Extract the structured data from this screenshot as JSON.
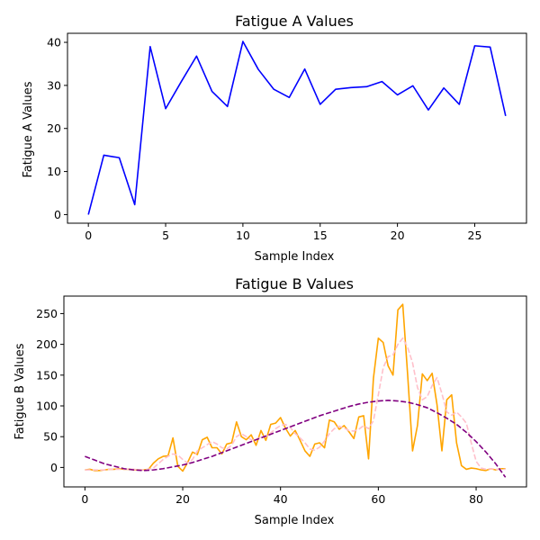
{
  "chart_data": [
    {
      "type": "line",
      "title": "Fatigue A Values",
      "xlabel": "Sample Index",
      "ylabel": "Fatigue A Values",
      "xlim": [
        -1.35,
        28.35
      ],
      "ylim": [
        -2.0,
        42.1
      ],
      "xticks": [
        0,
        5,
        10,
        15,
        20,
        25
      ],
      "yticks": [
        0,
        10,
        20,
        30,
        40
      ],
      "grid": false,
      "series": [
        {
          "color": "#0000ff",
          "style": "solid",
          "x": [
            0,
            1,
            2,
            3,
            4,
            5,
            6,
            7,
            8,
            9,
            10,
            11,
            12,
            13,
            14,
            15,
            16,
            17,
            18,
            19,
            20,
            21,
            22,
            23,
            24,
            25,
            26,
            27
          ],
          "y": [
            0.0,
            13.8,
            13.2,
            2.3,
            39.0,
            24.6,
            30.8,
            36.8,
            28.6,
            25.1,
            40.2,
            33.7,
            29.1,
            27.2,
            33.8,
            25.6,
            29.1,
            29.5,
            29.7,
            30.9,
            27.8,
            29.9,
            24.3,
            29.4,
            25.6,
            39.2,
            38.9,
            22.9
          ]
        }
      ]
    },
    {
      "type": "line",
      "title": "Fatigue B Values",
      "xlabel": "Sample Index",
      "ylabel": "Fatigue B Values",
      "xlim": [
        -4.3,
        90.3
      ],
      "ylim": [
        -31.6,
        278.4
      ],
      "xticks": [
        0,
        20,
        40,
        60,
        80
      ],
      "yticks": [
        0,
        50,
        100,
        150,
        200,
        250
      ],
      "grid": false,
      "series": [
        {
          "color": "#ffa500",
          "style": "solid",
          "x": [
            0,
            1,
            2,
            3,
            4,
            5,
            6,
            7,
            8,
            9,
            10,
            11,
            12,
            13,
            14,
            15,
            16,
            17,
            18,
            19,
            20,
            21,
            22,
            23,
            24,
            25,
            26,
            27,
            28,
            29,
            30,
            31,
            32,
            33,
            34,
            35,
            36,
            37,
            38,
            39,
            40,
            41,
            42,
            43,
            44,
            45,
            46,
            47,
            48,
            49,
            50,
            51,
            52,
            53,
            54,
            55,
            56,
            57,
            58,
            59,
            60,
            61,
            62,
            63,
            64,
            65,
            66,
            67,
            68,
            69,
            70,
            71,
            72,
            73,
            74,
            75,
            76,
            77,
            78,
            79,
            80,
            81,
            82,
            83,
            84,
            85,
            86
          ],
          "y": [
            -4,
            -3,
            -5,
            -5,
            -4,
            -3,
            -3,
            -2,
            -3,
            -3,
            -4,
            -4,
            -4,
            -3,
            7,
            14,
            18,
            19,
            48,
            2,
            -6,
            8,
            25,
            21,
            45,
            49,
            32,
            32,
            22,
            38,
            40,
            74,
            50,
            45,
            53,
            36,
            60,
            44,
            70,
            72,
            81,
            64,
            51,
            60,
            44,
            27,
            18,
            38,
            40,
            32,
            77,
            74,
            62,
            68,
            58,
            47,
            82,
            84,
            14,
            145,
            210,
            203,
            165,
            150,
            256,
            265,
            150,
            27,
            68,
            152,
            141,
            153,
            102,
            27,
            110,
            118,
            40,
            3,
            -3,
            -1,
            -2,
            -4,
            -5,
            -2,
            -4,
            -2,
            -2
          ]
        },
        {
          "color": "#ffc0cb",
          "style": "dashed",
          "x": [
            0,
            1,
            2,
            3,
            4,
            5,
            6,
            7,
            8,
            9,
            10,
            11,
            12,
            13,
            14,
            15,
            16,
            17,
            18,
            19,
            20,
            21,
            22,
            23,
            24,
            25,
            26,
            27,
            28,
            29,
            30,
            31,
            32,
            33,
            34,
            35,
            36,
            37,
            38,
            39,
            40,
            41,
            42,
            43,
            44,
            45,
            46,
            47,
            48,
            49,
            50,
            51,
            52,
            53,
            54,
            55,
            56,
            57,
            58,
            59,
            60,
            61,
            62,
            63,
            64,
            65,
            66,
            67,
            68,
            69,
            70,
            71,
            72,
            73,
            74,
            75,
            76,
            77,
            78,
            79,
            80,
            81,
            82,
            83,
            84,
            85,
            86
          ],
          "y": [
            -4,
            -4,
            -4,
            -4,
            -4,
            -3,
            -3,
            -3,
            -3,
            -3,
            -3,
            -4,
            -4,
            -3,
            -1,
            6,
            13,
            18,
            22,
            20,
            13,
            7,
            13,
            27,
            32,
            37,
            42,
            38,
            32,
            30,
            36,
            50,
            55,
            50,
            45,
            45,
            50,
            50,
            56,
            63,
            68,
            70,
            65,
            55,
            48,
            40,
            30,
            28,
            33,
            43,
            55,
            63,
            67,
            64,
            60,
            59,
            62,
            68,
            63,
            76,
            118,
            162,
            180,
            183,
            200,
            210,
            195,
            170,
            130,
            110,
            115,
            133,
            146,
            120,
            90,
            85,
            90,
            82,
            72,
            40,
            10,
            -1,
            -3,
            -2,
            -3,
            -3,
            -3
          ]
        },
        {
          "color": "#800080",
          "style": "dashed",
          "x": [
            0,
            2,
            4,
            6,
            8,
            10,
            12,
            14,
            16,
            18,
            20,
            22,
            24,
            26,
            28,
            30,
            32,
            34,
            36,
            38,
            40,
            42,
            44,
            46,
            48,
            50,
            52,
            54,
            56,
            58,
            60,
            62,
            64,
            66,
            68,
            70,
            72,
            74,
            76,
            78,
            80,
            82,
            84,
            86
          ],
          "y": [
            18,
            12,
            6,
            2,
            -2,
            -4,
            -5,
            -4,
            -2,
            1,
            4,
            8,
            13,
            18,
            24,
            30,
            36,
            42,
            48,
            54,
            60,
            66,
            72,
            78,
            84,
            89,
            94,
            99,
            103,
            106,
            108,
            109,
            108,
            106,
            102,
            97,
            89,
            80,
            70,
            57,
            42,
            25,
            6,
            -16
          ]
        }
      ]
    }
  ]
}
